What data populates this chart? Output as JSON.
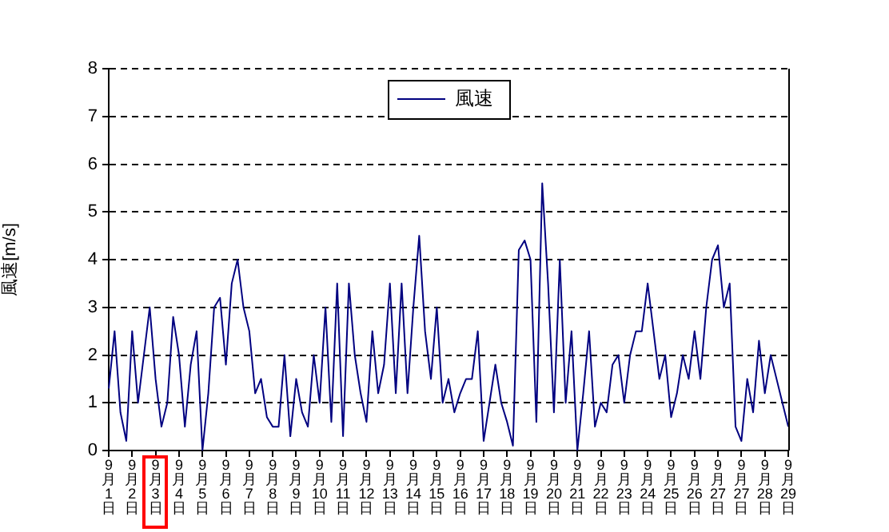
{
  "chart_data": {
    "type": "line",
    "ylabel": "風速[m/s]",
    "legend": "top",
    "grid": "y",
    "line_style": "solid",
    "marker": "none",
    "ylim": [
      0,
      8
    ],
    "yticks": [
      0,
      1,
      2,
      3,
      4,
      5,
      6,
      7,
      8
    ],
    "categories": [
      "9月1日",
      null,
      null,
      null,
      "9月2日",
      null,
      null,
      null,
      "9月3日",
      null,
      null,
      null,
      "9月4日",
      null,
      null,
      null,
      "9月5日",
      null,
      null,
      null,
      "9月6日",
      null,
      null,
      null,
      "9月7日",
      null,
      null,
      null,
      "9月8日",
      null,
      null,
      null,
      "9月9日",
      null,
      null,
      null,
      "9月10日",
      null,
      null,
      null,
      "9月11日",
      null,
      null,
      null,
      "9月12日",
      null,
      null,
      null,
      "9月13日",
      null,
      null,
      null,
      "9月14日",
      null,
      null,
      null,
      "9月15日",
      null,
      null,
      null,
      "9月16日",
      null,
      null,
      null,
      "9月17日",
      null,
      null,
      null,
      "9月18日",
      null,
      null,
      null,
      "9月19日",
      null,
      null,
      null,
      "9月20日",
      null,
      null,
      null,
      "9月21日",
      null,
      null,
      null,
      "9月22日",
      null,
      null,
      null,
      "9月23日",
      null,
      null,
      null,
      "9月24日",
      null,
      null,
      null,
      "9月25日",
      null,
      null,
      null,
      "9月26日",
      null,
      null,
      null,
      "9月27日",
      null,
      null,
      null,
      "9月27日",
      null,
      null,
      null,
      "9月28日",
      null,
      null,
      null,
      "9月29日"
    ],
    "series": [
      {
        "name": "風速",
        "color": "#000080",
        "values": [
          1.3,
          2.5,
          0.8,
          0.2,
          2.5,
          1.0,
          2.0,
          3.0,
          1.5,
          0.5,
          1.0,
          2.8,
          2.0,
          0.5,
          1.8,
          2.5,
          0.0,
          1.2,
          3.0,
          3.2,
          1.8,
          3.5,
          4.0,
          3.0,
          2.5,
          1.2,
          1.5,
          0.7,
          0.5,
          0.5,
          2.0,
          0.3,
          1.5,
          0.8,
          0.5,
          2.0,
          1.0,
          3.0,
          0.6,
          3.5,
          0.3,
          3.5,
          2.0,
          1.2,
          0.6,
          2.5,
          1.2,
          1.8,
          3.5,
          1.2,
          3.5,
          1.2,
          3.0,
          4.5,
          2.5,
          1.5,
          3.0,
          1.0,
          1.5,
          0.8,
          1.2,
          1.5,
          1.5,
          2.5,
          0.2,
          1.0,
          1.8,
          1.0,
          0.6,
          0.1,
          4.2,
          4.4,
          4.0,
          0.6,
          5.6,
          3.5,
          0.8,
          4.0,
          1.0,
          2.5,
          0.0,
          1.2,
          2.5,
          0.5,
          1.0,
          0.8,
          1.8,
          2.0,
          1.0,
          2.0,
          2.5,
          2.5,
          3.5,
          2.5,
          1.5,
          2.0,
          0.7,
          1.2,
          2.0,
          1.5,
          2.5,
          1.5,
          3.0,
          4.0,
          4.3,
          3.0,
          3.5,
          0.5,
          0.2,
          1.5,
          0.8,
          2.3,
          1.2,
          2.0,
          1.5,
          1.0,
          0.5
        ]
      }
    ]
  }
}
